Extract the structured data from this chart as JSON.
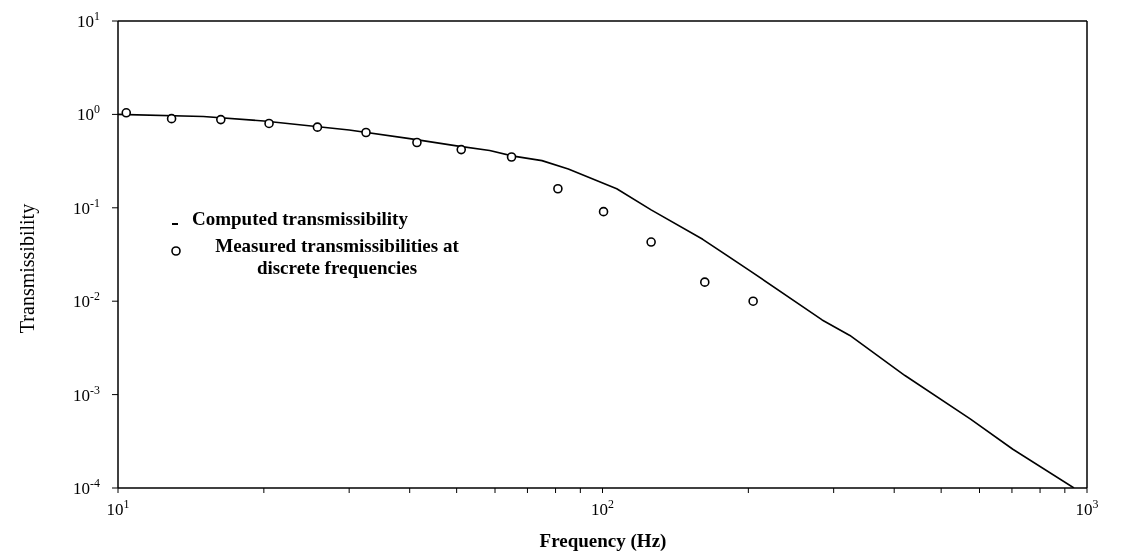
{
  "chart_data": {
    "type": "line",
    "xlabel": "Frequency (Hz)",
    "ylabel": "Transmissibility",
    "log": "xy",
    "legend": "left",
    "xlim": [
      10,
      1000
    ],
    "ylim": [
      0.0001,
      10
    ],
    "xticks": [
      {
        "value": 10,
        "label": "10$^{1}$"
      },
      {
        "value": 20,
        "label": null
      },
      {
        "value": 30,
        "label": null
      },
      {
        "value": 40,
        "label": null
      },
      {
        "value": 50,
        "label": null
      },
      {
        "value": 60,
        "label": null
      },
      {
        "value": 70,
        "label": null
      },
      {
        "value": 80,
        "label": null
      },
      {
        "value": 90,
        "label": null
      },
      {
        "value": 100,
        "label": "10$^{2}$"
      },
      {
        "value": 200,
        "label": null
      },
      {
        "value": 300,
        "label": null
      },
      {
        "value": 400,
        "label": null
      },
      {
        "value": 500,
        "label": null
      },
      {
        "value": 600,
        "label": null
      },
      {
        "value": 700,
        "label": null
      },
      {
        "value": 800,
        "label": null
      },
      {
        "value": 900,
        "label": null
      },
      {
        "value": 1000,
        "label": "10$^{3}$"
      }
    ],
    "yticks": [
      {
        "value": 0.0001,
        "label": "10$^{-4}$"
      },
      {
        "value": 0.001,
        "label": "10$^{-3}$"
      },
      {
        "value": 0.01,
        "label": "10$^{-2}$"
      },
      {
        "value": 0.1,
        "label": "10$^{-1}$"
      },
      {
        "value": 1,
        "label": "10$^{0}$"
      },
      {
        "value": 10,
        "label": "10$^{1}$"
      }
    ],
    "series": [
      {
        "name": "Computed transmissibility",
        "type": "line",
        "color": "#000000",
        "line_style": "solid",
        "x": [
          10,
          15,
          20,
          30,
          40,
          50,
          58.5,
          65,
          75,
          85,
          107,
          126,
          161,
          202,
          284,
          324,
          421,
          574,
          703,
          940
        ],
        "values": [
          1.0,
          0.95,
          0.85,
          0.68,
          0.55,
          0.46,
          0.41,
          0.36,
          0.32,
          0.26,
          0.16,
          0.095,
          0.046,
          0.021,
          0.0063,
          0.0043,
          0.0016,
          0.00055,
          0.00026,
          0.0001
        ]
      },
      {
        "name": "Measured transmissibilities at discrete frequencies",
        "type": "scatter",
        "marker": "circle",
        "color": "#000000",
        "x": [
          10.4,
          12.9,
          16.3,
          20.5,
          25.8,
          32.5,
          41.4,
          51.1,
          64.9,
          80.9,
          100.5,
          126,
          162.6,
          204.6
        ],
        "values": [
          1.04,
          0.9,
          0.88,
          0.8,
          0.73,
          0.64,
          0.5,
          0.42,
          0.35,
          0.16,
          0.091,
          0.043,
          0.016,
          0.01
        ]
      }
    ]
  }
}
